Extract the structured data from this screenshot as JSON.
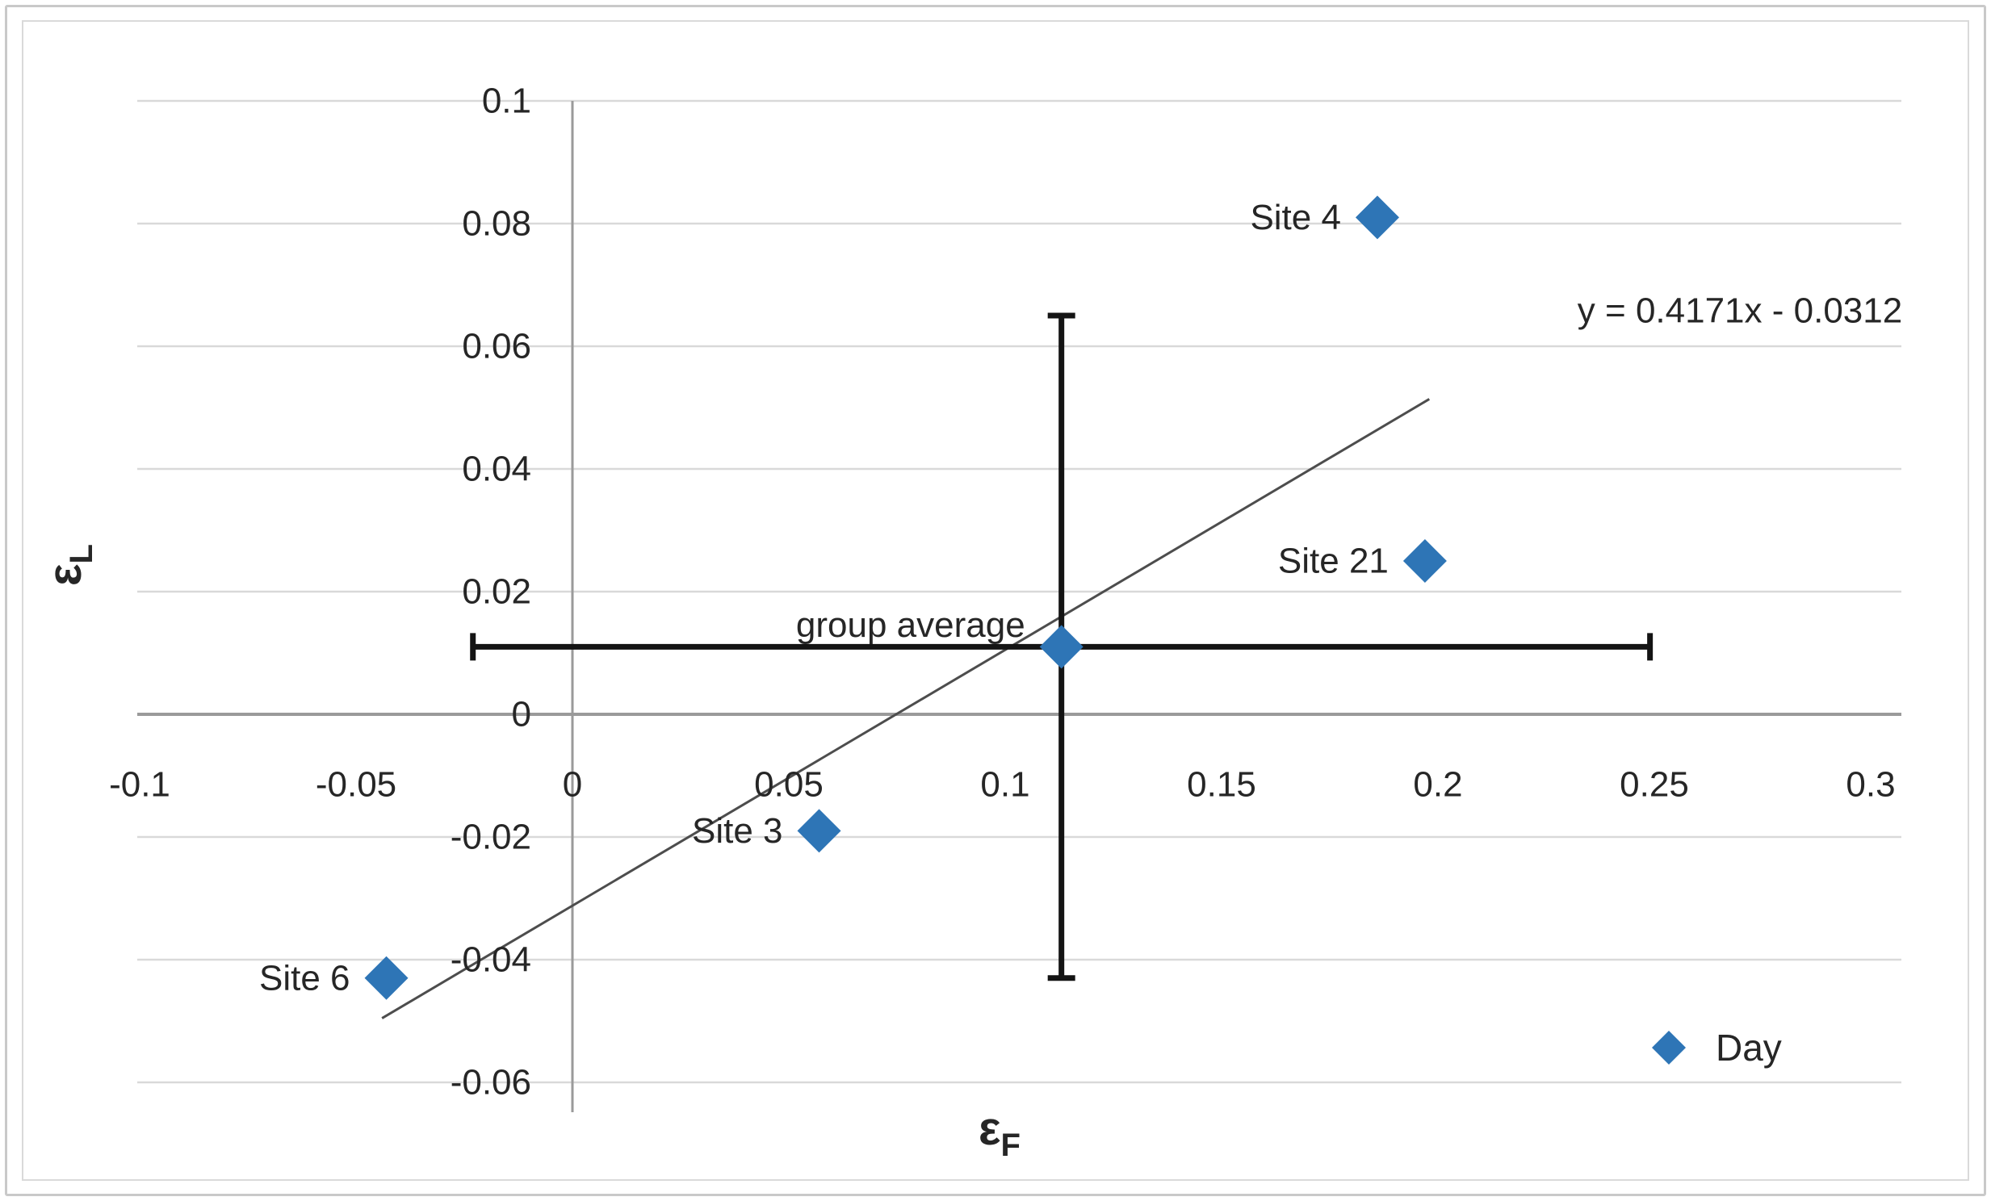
{
  "chart_data": {
    "type": "scatter",
    "title": "",
    "series": [
      {
        "name": "Day",
        "marker": "diamond",
        "color": "#2E75B6",
        "points": [
          {
            "label": "Site 4",
            "x": 0.186,
            "y": 0.081
          },
          {
            "label": "Site 21",
            "x": 0.197,
            "y": 0.025
          },
          {
            "label": "group average",
            "x": 0.113,
            "y": 0.011,
            "x_error": 0.136,
            "y_error": 0.054
          },
          {
            "label": "Site 3",
            "x": 0.057,
            "y": -0.019
          },
          {
            "label": "Site 6",
            "x": -0.043,
            "y": -0.043
          }
        ]
      }
    ],
    "trendline": {
      "equation": "y = 0.4171x - 0.0312",
      "slope": 0.4171,
      "intercept": -0.0312,
      "x_start": -0.044,
      "x_end": 0.198,
      "color": "#4d4d4d"
    },
    "x_axis": {
      "label": "ε",
      "label_subscript": "F",
      "min": -0.1,
      "max": 0.3,
      "ticks": [
        -0.1,
        -0.05,
        0,
        0.05,
        0.1,
        0.15,
        0.2,
        0.25,
        0.3
      ]
    },
    "y_axis": {
      "label": "ε",
      "label_subscript": "L",
      "min": -0.06,
      "max": 0.1,
      "ticks": [
        0.1,
        0.08,
        0.06,
        0.04,
        0.02,
        0,
        -0.02,
        -0.04,
        -0.06
      ]
    },
    "legend": {
      "position": "bottom-right",
      "entries": [
        {
          "label": "Day",
          "marker": "diamond",
          "color": "#2E75B6"
        }
      ]
    },
    "grid": {
      "horizontal": true,
      "vertical": false,
      "color": "#d9d9d9"
    },
    "axis_line_color": "#9a9a9a",
    "error_bar_color": "#141414",
    "text_color": "#262626"
  }
}
